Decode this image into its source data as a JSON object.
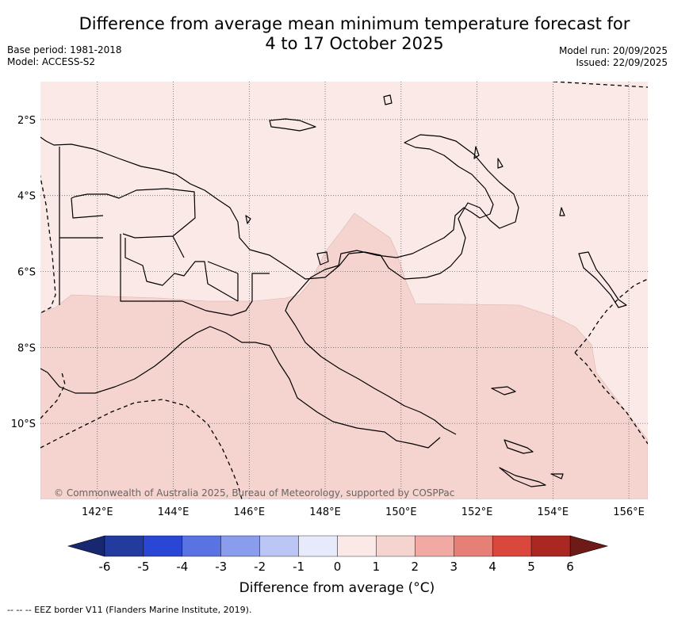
{
  "title": {
    "line1": "Difference from average mean minimum temperature forecast for",
    "line2": "4 to 17 October 2025"
  },
  "meta_left": {
    "base_period": "Base period: 1981-2018",
    "model": "Model: ACCESS-S2"
  },
  "meta_right": {
    "model_run": "Model run: 20/09/2025",
    "issued": "Issued: 22/09/2025"
  },
  "map": {
    "latitude_labels": [
      "2°S",
      "4°S",
      "6°S",
      "8°S",
      "10°S"
    ],
    "latitudes": [
      -2,
      -4,
      -6,
      -8,
      -10
    ],
    "longitude_labels": [
      "142°E",
      "144°E",
      "146°E",
      "148°E",
      "150°E",
      "152°E",
      "154°E",
      "156°E"
    ],
    "longitudes": [
      142,
      144,
      146,
      148,
      150,
      152,
      154,
      156
    ],
    "lon_range": [
      140.5,
      156.5
    ],
    "lat_range": [
      -12.0,
      -1.0
    ],
    "copyright": "© Commonwealth of Australia 2025, Bureau of Meteorology, supported by COSPPac",
    "fill_colors": {
      "range_0_1": "#fbe9e7",
      "range_1_2": "#f5d3cf"
    },
    "line_color": "#000000",
    "grid_color": "#555555"
  },
  "colorbar": {
    "tick_labels": [
      "-6",
      "-5",
      "-4",
      "-3",
      "-2",
      "-1",
      "0",
      "1",
      "2",
      "3",
      "4",
      "5",
      "6"
    ],
    "colors": [
      "#233a9e",
      "#2a46d4",
      "#5a73e3",
      "#8a9cec",
      "#bcc6f4",
      "#e6eafa",
      "#fbe9e7",
      "#f5d3cf",
      "#f0aaa3",
      "#e67f75",
      "#d9473d",
      "#aa2722"
    ],
    "low_extension_color": "#182870",
    "high_extension_color": "#6e1a17",
    "label": "Difference from average (°C)"
  },
  "footer": "-- -- -- EEZ border V11 (Flanders Marine Institute, 2019)."
}
